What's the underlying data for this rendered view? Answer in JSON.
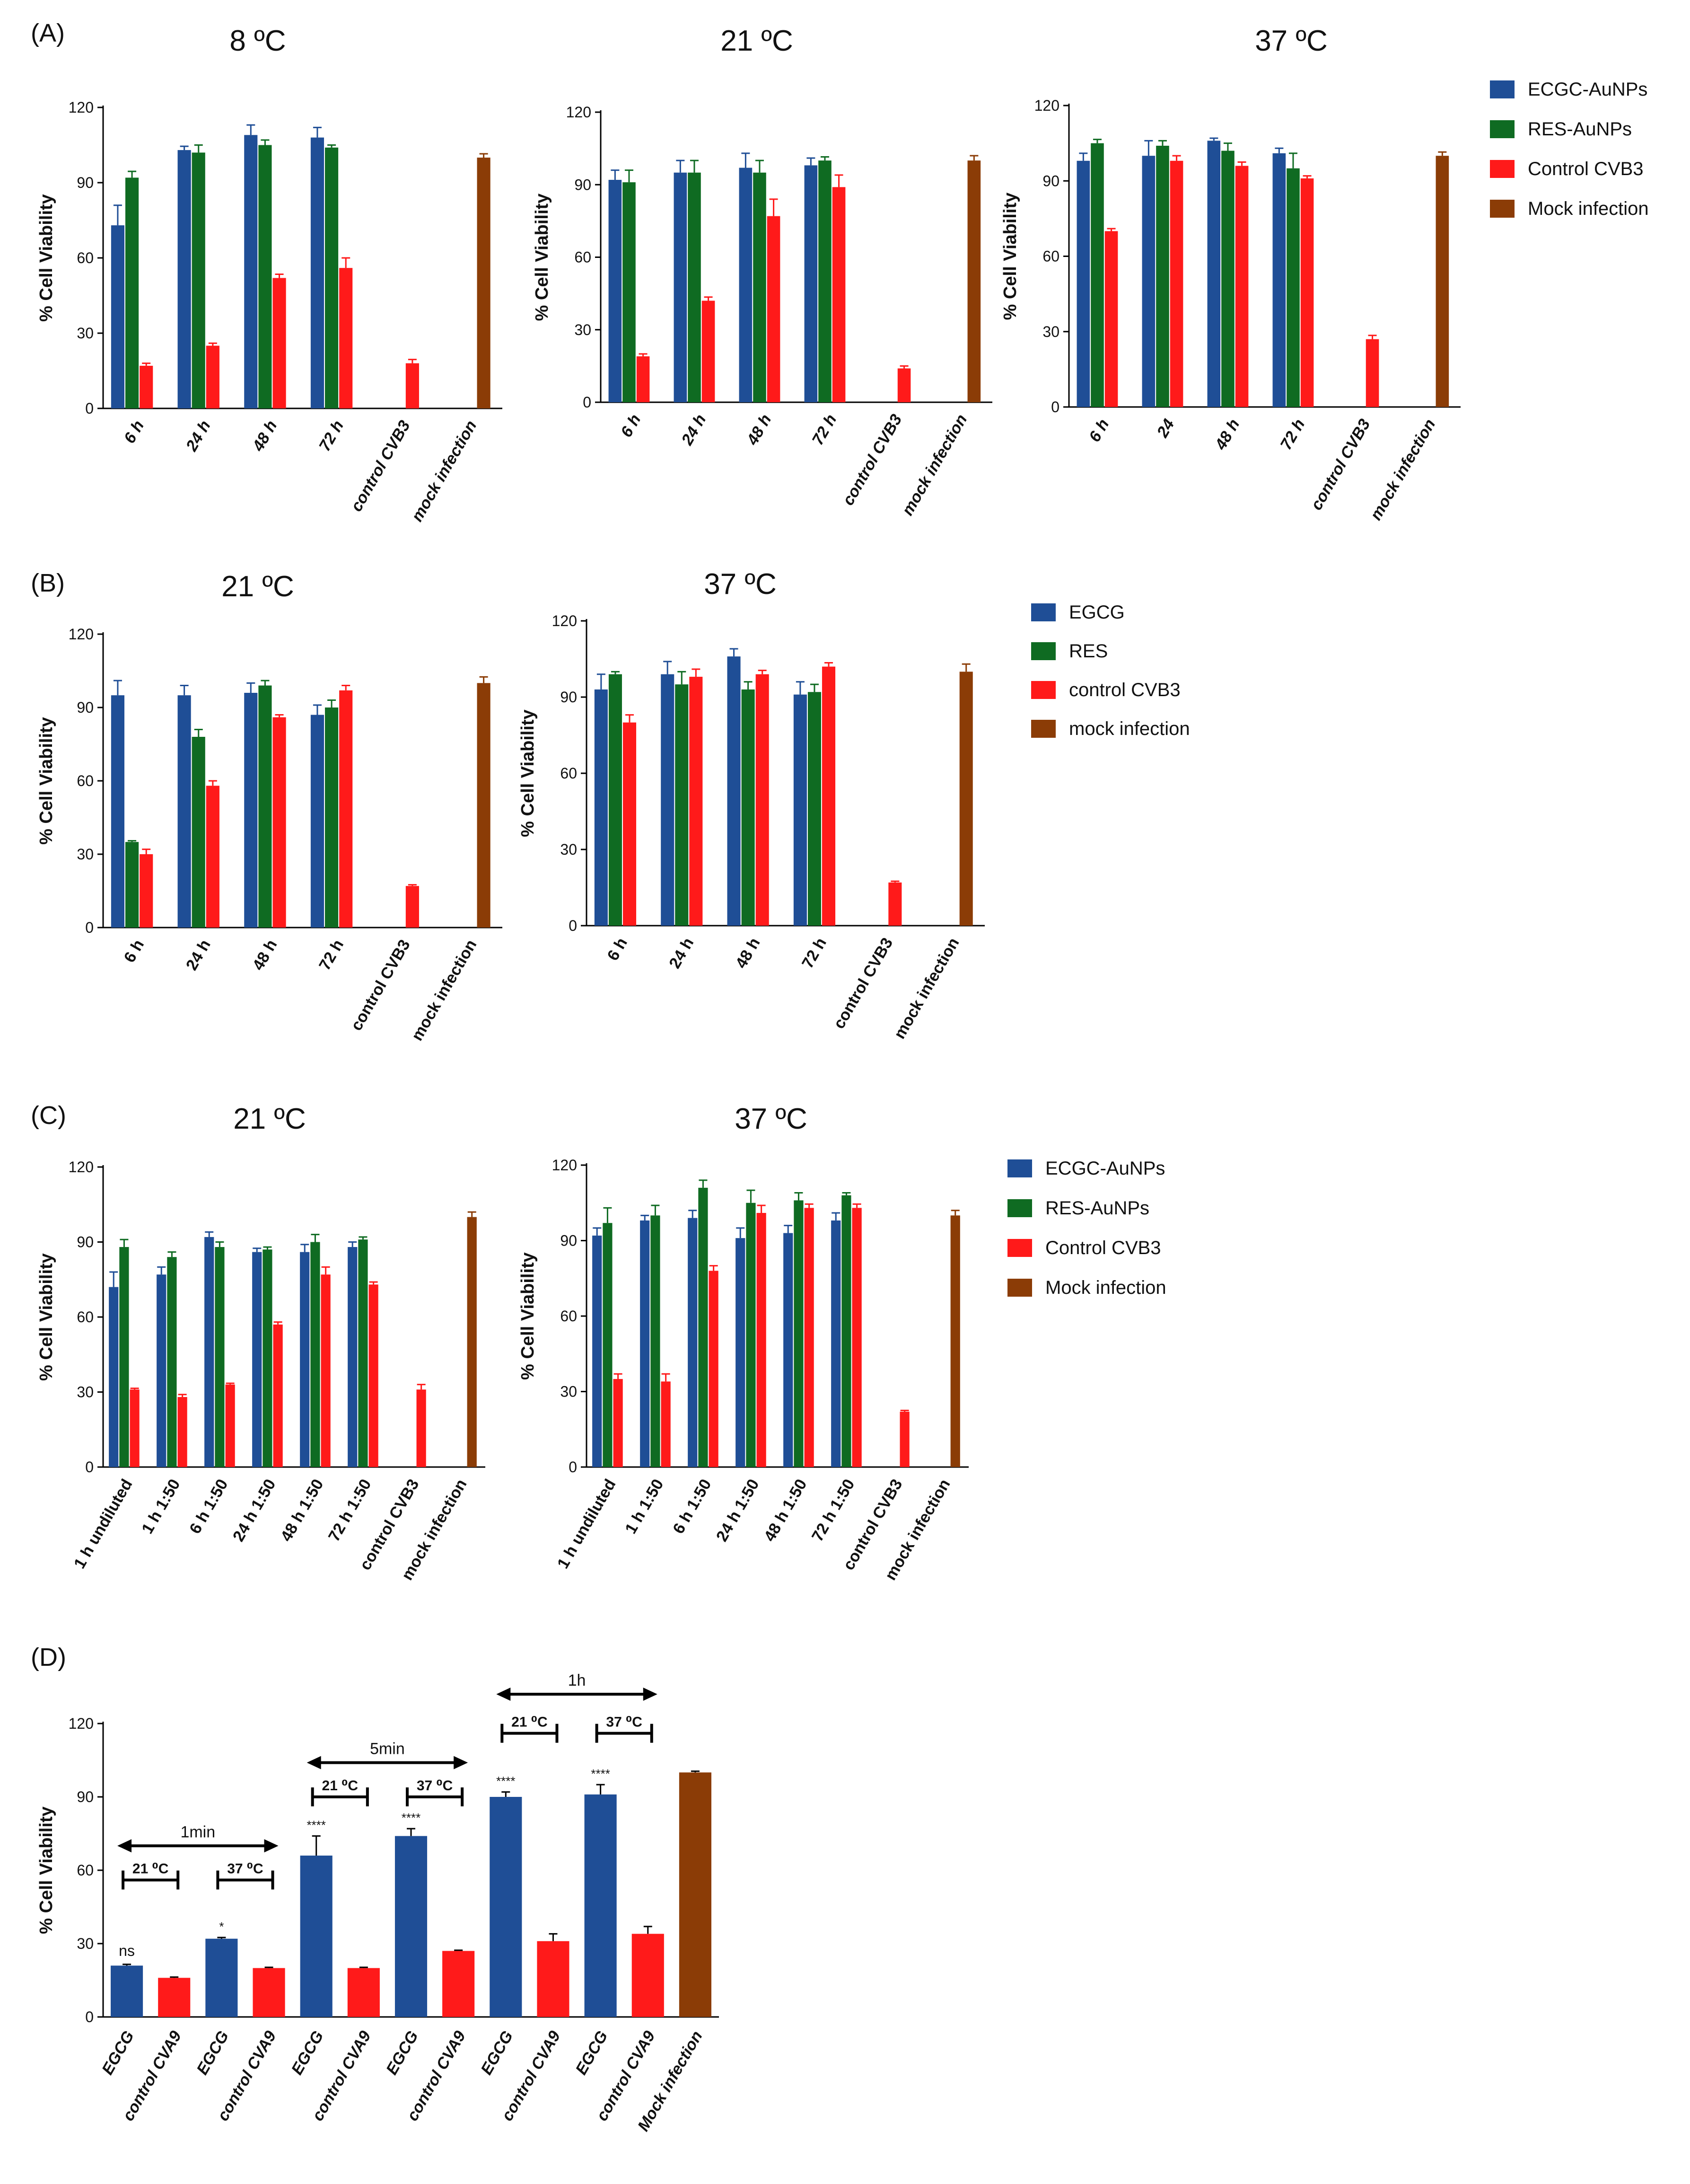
{
  "colors": {
    "blue": "#1f4e96",
    "green": "#0f6b22",
    "red": "#ff1a1a",
    "brown": "#8b3c06",
    "axis": "#000000",
    "text": "#111111"
  },
  "legends": [
    {
      "panel": "A",
      "items": [
        {
          "label": "ECGC-AuNPs",
          "color": "#1f4e96"
        },
        {
          "label": "RES-AuNPs",
          "color": "#0f6b22"
        },
        {
          "label": "Control CVB3",
          "color": "#ff1a1a"
        },
        {
          "label": "Mock infection",
          "color": "#8b3c06"
        }
      ]
    },
    {
      "panel": "B",
      "items": [
        {
          "label": "EGCG",
          "color": "#1f4e96"
        },
        {
          "label": "RES",
          "color": "#0f6b22"
        },
        {
          "label": "control CVB3",
          "color": "#ff1a1a"
        },
        {
          "label": "mock infection",
          "color": "#8b3c06"
        }
      ]
    },
    {
      "panel": "C",
      "items": [
        {
          "label": "ECGC-AuNPs",
          "color": "#1f4e96"
        },
        {
          "label": "RES-AuNPs",
          "color": "#0f6b22"
        },
        {
          "label": "Control CVB3",
          "color": "#ff1a1a"
        },
        {
          "label": "Mock infection",
          "color": "#8b3c06"
        }
      ]
    }
  ],
  "chart_data": [
    {
      "id": "A1",
      "panel_label": "(A)",
      "type": "bar",
      "title": "8 ºC",
      "ylabel": "% Cell Viability",
      "ylim": [
        0,
        120
      ],
      "yticks": [
        0,
        30,
        60,
        90,
        120
      ],
      "categories": [
        "6 h",
        "24 h",
        "48 h",
        "72 h",
        "control CVB3",
        "mock infection"
      ],
      "series": [
        {
          "name": "ECGC-AuNPs",
          "color": "#1f4e96",
          "values": [
            73,
            103,
            109,
            108,
            null,
            null
          ],
          "errors": [
            8,
            1.5,
            4,
            4,
            null,
            null
          ]
        },
        {
          "name": "RES-AuNPs",
          "color": "#0f6b22",
          "values": [
            92,
            102,
            105,
            104,
            null,
            null
          ],
          "errors": [
            2.5,
            3,
            2,
            1,
            null,
            null
          ]
        },
        {
          "name": "Control CVB3",
          "color": "#ff1a1a",
          "values": [
            17,
            25,
            52,
            56,
            18,
            null
          ],
          "errors": [
            1,
            1,
            1.5,
            4,
            1.5,
            null
          ]
        },
        {
          "name": "Mock infection",
          "color": "#8b3c06",
          "values": [
            null,
            null,
            null,
            null,
            null,
            100
          ],
          "errors": [
            null,
            null,
            null,
            null,
            null,
            1.5
          ]
        }
      ]
    },
    {
      "id": "A2",
      "panel_label": "",
      "type": "bar",
      "title": "21 ºC",
      "ylabel": "% Cell Viability",
      "ylim": [
        0,
        120
      ],
      "yticks": [
        0,
        30,
        60,
        90,
        120
      ],
      "categories": [
        "6 h",
        "24 h",
        "48 h",
        "72 h",
        "control CVB3",
        "mock infection"
      ],
      "series": [
        {
          "name": "ECGC-AuNPs",
          "color": "#1f4e96",
          "values": [
            92,
            95,
            97,
            98,
            null,
            null
          ],
          "errors": [
            4,
            5,
            6,
            3,
            null,
            null
          ]
        },
        {
          "name": "RES-AuNPs",
          "color": "#0f6b22",
          "values": [
            91,
            95,
            95,
            100,
            null,
            null
          ],
          "errors": [
            5,
            5,
            5,
            1.5,
            null,
            null
          ]
        },
        {
          "name": "Control CVB3",
          "color": "#ff1a1a",
          "values": [
            19,
            42,
            77,
            89,
            14,
            null
          ],
          "errors": [
            1,
            1.5,
            7,
            5,
            1,
            null
          ]
        },
        {
          "name": "Mock infection",
          "color": "#8b3c06",
          "values": [
            null,
            null,
            null,
            null,
            null,
            100
          ],
          "errors": [
            null,
            null,
            null,
            null,
            null,
            2
          ]
        }
      ]
    },
    {
      "id": "A3",
      "panel_label": "",
      "type": "bar",
      "title": "37 ºC",
      "ylabel": "% Cell Viability",
      "ylim": [
        0,
        120
      ],
      "yticks": [
        0,
        30,
        60,
        90,
        120
      ],
      "categories": [
        "6 h",
        "24",
        "48 h",
        "72 h",
        "control CVB3",
        "mock infection"
      ],
      "series": [
        {
          "name": "ECGC-AuNPs",
          "color": "#1f4e96",
          "values": [
            98,
            100,
            106,
            101,
            null,
            null
          ],
          "errors": [
            3,
            6,
            1,
            2,
            null,
            null
          ]
        },
        {
          "name": "RES-AuNPs",
          "color": "#0f6b22",
          "values": [
            105,
            104,
            102,
            95,
            null,
            null
          ],
          "errors": [
            1.5,
            2,
            3,
            6,
            null,
            null
          ]
        },
        {
          "name": "Control CVB3",
          "color": "#ff1a1a",
          "values": [
            70,
            98,
            96,
            91,
            27,
            null
          ],
          "errors": [
            1,
            2,
            1.5,
            1,
            1.5,
            null
          ]
        },
        {
          "name": "Mock infection",
          "color": "#8b3c06",
          "values": [
            null,
            null,
            null,
            null,
            null,
            100
          ],
          "errors": [
            null,
            null,
            null,
            null,
            null,
            1.5
          ]
        }
      ]
    },
    {
      "id": "B1",
      "panel_label": "(B)",
      "type": "bar",
      "title": "21 ºC",
      "ylabel": "% Cell Viability",
      "ylim": [
        0,
        120
      ],
      "yticks": [
        0,
        30,
        60,
        90,
        120
      ],
      "categories": [
        "6 h",
        "24 h",
        "48 h",
        "72 h",
        "control CVB3",
        "mock infection"
      ],
      "series": [
        {
          "name": "EGCG",
          "color": "#1f4e96",
          "values": [
            95,
            95,
            96,
            87,
            null,
            null
          ],
          "errors": [
            6,
            4,
            4,
            4,
            null,
            null
          ]
        },
        {
          "name": "RES",
          "color": "#0f6b22",
          "values": [
            35,
            78,
            99,
            90,
            null,
            null
          ],
          "errors": [
            0.5,
            3,
            2,
            3,
            null,
            null
          ]
        },
        {
          "name": "control CVB3",
          "color": "#ff1a1a",
          "values": [
            30,
            58,
            86,
            97,
            17,
            null
          ],
          "errors": [
            2,
            2,
            1,
            2,
            0.5,
            null
          ]
        },
        {
          "name": "mock infection",
          "color": "#8b3c06",
          "values": [
            null,
            null,
            null,
            null,
            null,
            100
          ],
          "errors": [
            null,
            null,
            null,
            null,
            null,
            2.5
          ]
        }
      ]
    },
    {
      "id": "B2",
      "panel_label": "",
      "type": "bar",
      "title": "37 ºC",
      "ylabel": "% Cell Viability",
      "ylim": [
        0,
        120
      ],
      "yticks": [
        0,
        30,
        60,
        90,
        120
      ],
      "categories": [
        "6 h",
        "24 h",
        "48 h",
        "72 h",
        "control CVB3",
        "mock infection"
      ],
      "series": [
        {
          "name": "EGCG",
          "color": "#1f4e96",
          "values": [
            93,
            99,
            106,
            91,
            null,
            null
          ],
          "errors": [
            6,
            5,
            3,
            5,
            null,
            null
          ]
        },
        {
          "name": "RES",
          "color": "#0f6b22",
          "values": [
            99,
            95,
            93,
            92,
            null,
            null
          ],
          "errors": [
            1,
            5,
            3,
            3,
            null,
            null
          ]
        },
        {
          "name": "control CVB3",
          "color": "#ff1a1a",
          "values": [
            80,
            98,
            99,
            102,
            17,
            null
          ],
          "errors": [
            3,
            3,
            1.5,
            1.5,
            0.5,
            null
          ]
        },
        {
          "name": "mock infection",
          "color": "#8b3c06",
          "values": [
            null,
            null,
            null,
            null,
            null,
            100
          ],
          "errors": [
            null,
            null,
            null,
            null,
            null,
            3
          ]
        }
      ]
    },
    {
      "id": "C1",
      "panel_label": "(C)",
      "type": "bar",
      "title": "21 ºC",
      "ylabel": "% Cell Viability",
      "ylim": [
        0,
        120
      ],
      "yticks": [
        0,
        30,
        60,
        90,
        120
      ],
      "categories": [
        "1 h undiluted",
        "1 h 1:50",
        "6 h 1:50",
        "24 h 1:50",
        "48 h 1:50",
        "72 h 1:50",
        "control CVB3",
        "mock infection"
      ],
      "series": [
        {
          "name": "ECGC-AuNPs",
          "color": "#1f4e96",
          "values": [
            72,
            77,
            92,
            86,
            86,
            88,
            null,
            null
          ],
          "errors": [
            6,
            3,
            2,
            1.5,
            3,
            2,
            null,
            null
          ]
        },
        {
          "name": "RES-AuNPs",
          "color": "#0f6b22",
          "values": [
            88,
            84,
            88,
            87,
            90,
            91,
            null,
            null
          ],
          "errors": [
            3,
            2,
            2,
            1,
            3,
            1,
            null,
            null
          ]
        },
        {
          "name": "Control CVB3",
          "color": "#ff1a1a",
          "values": [
            31,
            28,
            33,
            57,
            77,
            73,
            31,
            null
          ],
          "errors": [
            0.5,
            1,
            0.5,
            1,
            3,
            1,
            2,
            null
          ]
        },
        {
          "name": "Mock infection",
          "color": "#8b3c06",
          "values": [
            null,
            null,
            null,
            null,
            null,
            null,
            null,
            100
          ],
          "errors": [
            null,
            null,
            null,
            null,
            null,
            null,
            null,
            2
          ]
        }
      ]
    },
    {
      "id": "C2",
      "panel_label": "",
      "type": "bar",
      "title": "37 ºC",
      "ylabel": "% Cell Viability",
      "ylim": [
        0,
        120
      ],
      "yticks": [
        0,
        30,
        60,
        90,
        120
      ],
      "categories": [
        "1 h undiluted",
        "1 h 1:50",
        "6 h 1:50",
        "24 h 1:50",
        "48 h 1:50",
        "72 h 1:50",
        "control CVB3",
        "mock infection"
      ],
      "series": [
        {
          "name": "ECGC-AuNPs",
          "color": "#1f4e96",
          "values": [
            92,
            98,
            99,
            91,
            93,
            98,
            null,
            null
          ],
          "errors": [
            3,
            2,
            3,
            4,
            3,
            3,
            null,
            null
          ]
        },
        {
          "name": "RES-AuNPs",
          "color": "#0f6b22",
          "values": [
            97,
            100,
            111,
            105,
            106,
            108,
            null,
            null
          ],
          "errors": [
            6,
            4,
            3,
            5,
            3,
            1,
            null,
            null
          ]
        },
        {
          "name": "Control CVB3",
          "color": "#ff1a1a",
          "values": [
            35,
            34,
            78,
            101,
            103,
            103,
            22,
            null
          ],
          "errors": [
            2,
            3,
            2,
            3,
            1.5,
            1.5,
            0.5,
            null
          ]
        },
        {
          "name": "Mock infection",
          "color": "#8b3c06",
          "values": [
            null,
            null,
            null,
            null,
            null,
            null,
            null,
            100
          ],
          "errors": [
            null,
            null,
            null,
            null,
            null,
            null,
            null,
            2
          ]
        }
      ]
    },
    {
      "id": "D",
      "panel_label": "(D)",
      "type": "bar",
      "title": "",
      "ylabel": "% Cell Viability",
      "ylim": [
        0,
        120
      ],
      "yticks": [
        0,
        30,
        60,
        90,
        120
      ],
      "categories": [
        "EGCG",
        "control CVA9",
        "EGCG",
        "control CVA9",
        "EGCG",
        "control CVA9",
        "EGCG",
        "control CVA9",
        "EGCG",
        "control CVA9",
        "EGCG",
        "control CVA9",
        "Mock infection"
      ],
      "values": [
        21,
        16,
        32,
        20,
        66,
        20,
        74,
        27,
        90,
        31,
        91,
        34,
        100
      ],
      "errors": [
        0.5,
        0.3,
        0.5,
        0.3,
        8,
        0.3,
        3,
        0.3,
        2,
        3,
        4,
        3,
        0.5
      ],
      "colors": [
        "#1f4e96",
        "#ff1a1a",
        "#1f4e96",
        "#ff1a1a",
        "#1f4e96",
        "#ff1a1a",
        "#1f4e96",
        "#ff1a1a",
        "#1f4e96",
        "#ff1a1a",
        "#1f4e96",
        "#ff1a1a",
        "#8b3c06"
      ],
      "significance": [
        "ns",
        "",
        "*",
        "",
        "****",
        "",
        "****",
        "",
        "****",
        "",
        "****",
        "",
        ""
      ],
      "time_groups": [
        "1min",
        "5min",
        "1h"
      ],
      "temp_labels": [
        "21 ⁰C",
        "37 ⁰C"
      ]
    }
  ]
}
